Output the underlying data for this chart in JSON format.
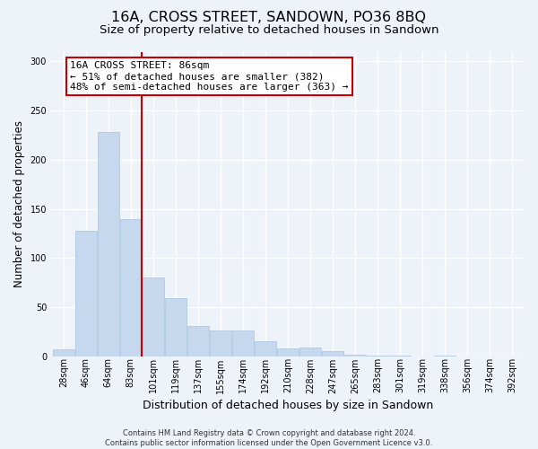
{
  "title": "16A, CROSS STREET, SANDOWN, PO36 8BQ",
  "subtitle": "Size of property relative to detached houses in Sandown",
  "xlabel": "Distribution of detached houses by size in Sandown",
  "ylabel": "Number of detached properties",
  "bar_labels": [
    "28sqm",
    "46sqm",
    "64sqm",
    "83sqm",
    "101sqm",
    "119sqm",
    "137sqm",
    "155sqm",
    "174sqm",
    "192sqm",
    "210sqm",
    "228sqm",
    "247sqm",
    "265sqm",
    "283sqm",
    "301sqm",
    "319sqm",
    "338sqm",
    "356sqm",
    "374sqm",
    "392sqm"
  ],
  "bar_values": [
    7,
    128,
    228,
    140,
    80,
    59,
    31,
    26,
    26,
    15,
    8,
    9,
    5,
    2,
    1,
    1,
    0,
    1,
    0,
    0,
    0
  ],
  "bar_color": "#c5d8ed",
  "bar_edgecolor": "#a8c4e0",
  "vline_bar_index": 3,
  "vline_color": "#cc0000",
  "annotation_text": "16A CROSS STREET: 86sqm\n← 51% of detached houses are smaller (382)\n48% of semi-detached houses are larger (363) →",
  "annotation_box_facecolor": "#ffffff",
  "annotation_box_edgecolor": "#cc0000",
  "ylim": [
    0,
    310
  ],
  "yticks": [
    0,
    50,
    100,
    150,
    200,
    250,
    300
  ],
  "footer_line1": "Contains HM Land Registry data © Crown copyright and database right 2024.",
  "footer_line2": "Contains public sector information licensed under the Open Government Licence v3.0.",
  "background_color": "#eef3fa",
  "grid_color": "#ffffff",
  "title_fontsize": 11.5,
  "subtitle_fontsize": 9.5,
  "tick_fontsize": 7,
  "ylabel_fontsize": 8.5,
  "xlabel_fontsize": 9,
  "annotation_fontsize": 8,
  "footer_fontsize": 6
}
